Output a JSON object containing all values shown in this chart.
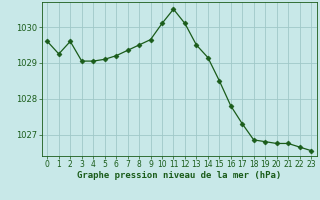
{
  "x": [
    0,
    1,
    2,
    3,
    4,
    5,
    6,
    7,
    8,
    9,
    10,
    11,
    12,
    13,
    14,
    15,
    16,
    17,
    18,
    19,
    20,
    21,
    22,
    23
  ],
  "y": [
    1029.6,
    1029.25,
    1029.6,
    1029.05,
    1029.05,
    1029.1,
    1029.2,
    1029.35,
    1029.5,
    1029.65,
    1030.1,
    1030.5,
    1030.1,
    1029.5,
    1029.15,
    1028.5,
    1027.8,
    1027.3,
    1026.85,
    1026.8,
    1026.75,
    1026.75,
    1026.65,
    1026.55
  ],
  "line_color": "#1a5c1a",
  "marker": "D",
  "marker_size": 2.5,
  "bg_color": "#c8e8e8",
  "plot_bg_color": "#c8e8e8",
  "grid_color": "#a0c8c8",
  "xlabel": "Graphe pression niveau de la mer (hPa)",
  "xlabel_color": "#1a5c1a",
  "tick_color": "#1a5c1a",
  "axis_color": "#1a5c1a",
  "ylim": [
    1026.4,
    1030.7
  ],
  "yticks": [
    1027,
    1028,
    1029,
    1030
  ],
  "xlim": [
    -0.5,
    23.5
  ],
  "xticks": [
    0,
    1,
    2,
    3,
    4,
    5,
    6,
    7,
    8,
    9,
    10,
    11,
    12,
    13,
    14,
    15,
    16,
    17,
    18,
    19,
    20,
    21,
    22,
    23
  ],
  "tick_fontsize": 5.5,
  "xlabel_fontsize": 6.5,
  "ytick_fontsize": 6.0
}
